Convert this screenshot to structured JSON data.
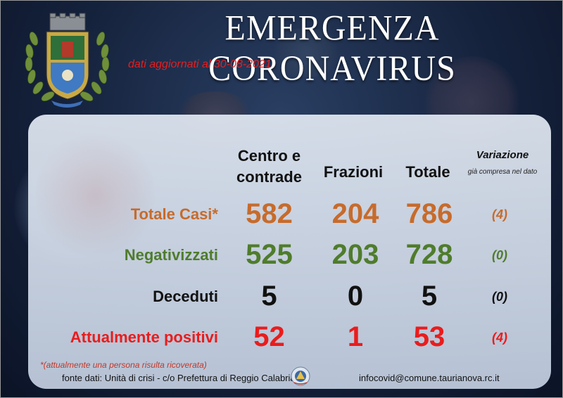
{
  "header": {
    "title": "EMERGENZA CORONAVIRUS",
    "updated": "dati aggiornati al 30-08-2021"
  },
  "columns": {
    "centro": "Centro e contrade",
    "frazioni": "Frazioni",
    "totale": "Totale",
    "variazione": "Variazione",
    "variazione_note": "già compresa nel dato"
  },
  "rows": [
    {
      "label": "Totale Casi*",
      "centro": "582",
      "frazioni": "204",
      "totale": "786",
      "variazione": "(4)",
      "color": "#c76b2b"
    },
    {
      "label": "Negativizzati",
      "centro": "525",
      "frazioni": "203",
      "totale": "728",
      "variazione": "(0)",
      "color": "#4f7c2c"
    },
    {
      "label": "Deceduti",
      "centro": "5",
      "frazioni": "0",
      "totale": "5",
      "variazione": "(0)",
      "color": "#111111"
    },
    {
      "label": "Attualmente positivi",
      "centro": "52",
      "frazioni": "1",
      "totale": "53",
      "variazione": "(4)",
      "color": "#ea1c1c"
    }
  ],
  "footer": {
    "note": "*(attualmente una persona risulta ricoverata)",
    "source": "fonte dati: Unità di crisi - c/o Prefettura di Reggio Calabria",
    "email": "infocovid@comune.taurianova.rc.it"
  },
  "icons": {
    "crest": "municipal-crest-icon",
    "prefettura": "prefettura-logo-icon"
  }
}
